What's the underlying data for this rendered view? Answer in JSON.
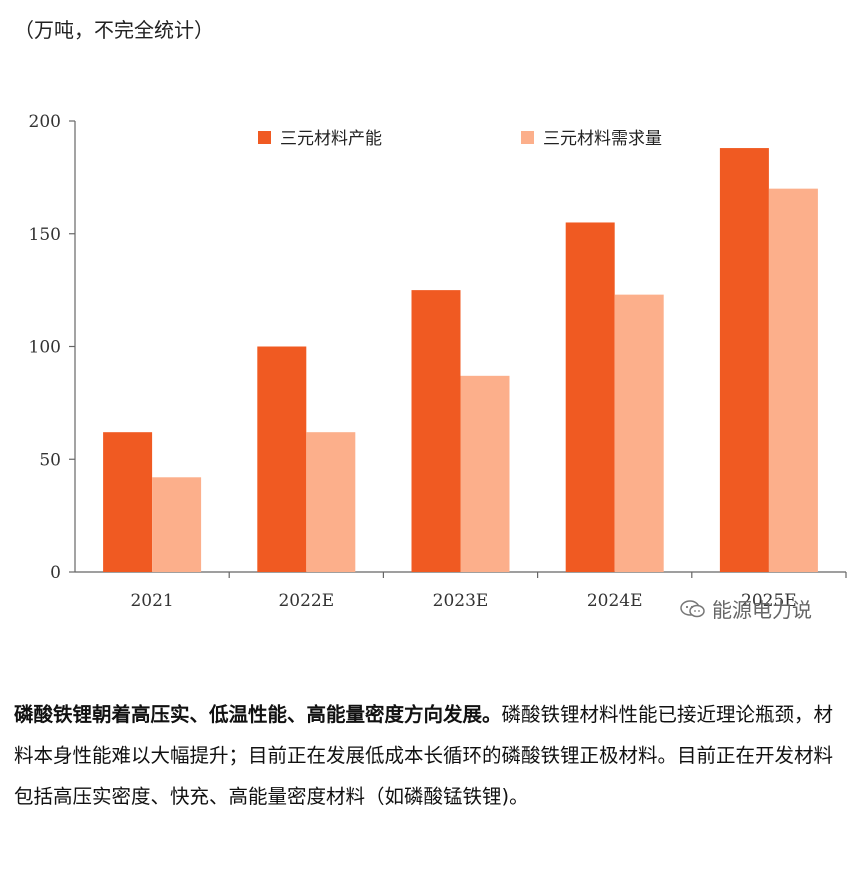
{
  "unit_note": "（万吨，不完全统计）",
  "watermark": "能源电力说",
  "paragraph": {
    "lead": "磷酸铁锂朝着高压实、低温性能、高能量密度方向发展。",
    "body": "磷酸铁锂材料性能已接近理论瓶颈，材料本身性能难以大幅提升；目前正在发展低成本长循环的磷酸铁锂正极材料。目前正在开发材料包括高压实密度、快充、高能量密度材料（如磷酸锰铁锂)。"
  },
  "chart_data": {
    "type": "bar",
    "categories": [
      "2021",
      "2022E",
      "2023E",
      "2024E",
      "2025E"
    ],
    "series": [
      {
        "name": "三元材料产能",
        "values": [
          62,
          100,
          125,
          155,
          188
        ],
        "color": "#f05a22"
      },
      {
        "name": "三元材料需求量",
        "values": [
          42,
          62,
          87,
          123,
          170
        ],
        "color": "#fcaf8b"
      }
    ],
    "title": "",
    "xlabel": "",
    "ylabel": "",
    "ylim": [
      0,
      200
    ],
    "yticks": [
      0,
      50,
      100,
      150,
      200
    ],
    "grid": false,
    "legend": "top"
  }
}
